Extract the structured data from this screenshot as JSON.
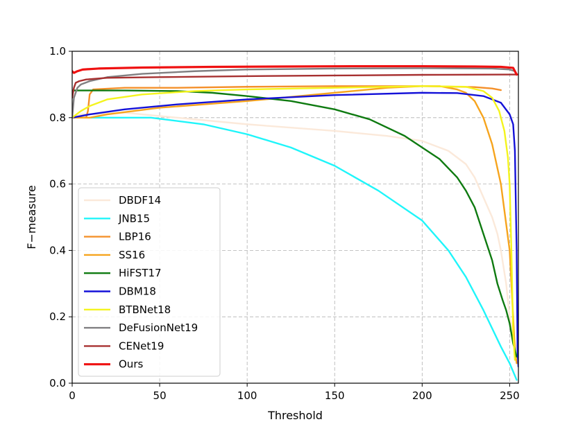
{
  "chart_data": {
    "type": "line",
    "title": "",
    "xlabel": "Threshold",
    "ylabel": "F−measure",
    "xlim": [
      0,
      255
    ],
    "ylim": [
      0.0,
      1.0
    ],
    "xticks": [
      0,
      50,
      100,
      150,
      200,
      250
    ],
    "yticks": [
      0.0,
      0.2,
      0.4,
      0.6,
      0.8,
      1.0
    ],
    "xtick_labels": [
      "0",
      "50",
      "100",
      "150",
      "200",
      "250"
    ],
    "ytick_labels": [
      "0.0",
      "0.2",
      "0.4",
      "0.6",
      "0.8",
      "1.0"
    ],
    "grid": true,
    "legend_position": "lower-left",
    "series": [
      {
        "name": "DBDF14",
        "color": "#fbe9da",
        "points": [
          [
            0,
            0.8
          ],
          [
            5,
            0.81
          ],
          [
            10,
            0.81
          ],
          [
            30,
            0.815
          ],
          [
            60,
            0.8
          ],
          [
            100,
            0.78
          ],
          [
            150,
            0.76
          ],
          [
            180,
            0.745
          ],
          [
            200,
            0.73
          ],
          [
            215,
            0.7
          ],
          [
            225,
            0.66
          ],
          [
            230,
            0.62
          ],
          [
            235,
            0.56
          ],
          [
            240,
            0.5
          ],
          [
            243,
            0.45
          ],
          [
            245,
            0.4
          ],
          [
            248,
            0.3
          ],
          [
            250,
            0.2
          ],
          [
            252,
            0.15
          ],
          [
            254,
            0.1
          ],
          [
            255,
            0.08
          ]
        ]
      },
      {
        "name": "JNB15",
        "color": "#1ff5fa",
        "points": [
          [
            0,
            0.8
          ],
          [
            20,
            0.8
          ],
          [
            45,
            0.8
          ],
          [
            75,
            0.78
          ],
          [
            100,
            0.75
          ],
          [
            125,
            0.71
          ],
          [
            150,
            0.655
          ],
          [
            175,
            0.58
          ],
          [
            200,
            0.49
          ],
          [
            215,
            0.4
          ],
          [
            225,
            0.32
          ],
          [
            235,
            0.22
          ],
          [
            245,
            0.11
          ],
          [
            250,
            0.06
          ],
          [
            254,
            0.01
          ]
        ]
      },
      {
        "name": "LBP16",
        "color": "#f4902a",
        "points": [
          [
            0,
            0.8
          ],
          [
            5,
            0.8
          ],
          [
            8,
            0.8
          ],
          [
            9,
            0.82
          ],
          [
            10,
            0.87
          ],
          [
            12,
            0.885
          ],
          [
            30,
            0.89
          ],
          [
            60,
            0.89
          ],
          [
            100,
            0.893
          ],
          [
            150,
            0.895
          ],
          [
            200,
            0.895
          ],
          [
            230,
            0.892
          ],
          [
            240,
            0.888
          ],
          [
            245,
            0.883
          ]
        ]
      },
      {
        "name": "SS16",
        "color": "#f6a41d",
        "points": [
          [
            0,
            0.8
          ],
          [
            10,
            0.8
          ],
          [
            20,
            0.81
          ],
          [
            50,
            0.83
          ],
          [
            100,
            0.85
          ],
          [
            150,
            0.875
          ],
          [
            180,
            0.89
          ],
          [
            200,
            0.895
          ],
          [
            210,
            0.895
          ],
          [
            220,
            0.885
          ],
          [
            225,
            0.875
          ],
          [
            230,
            0.85
          ],
          [
            235,
            0.8
          ],
          [
            240,
            0.72
          ],
          [
            245,
            0.6
          ],
          [
            248,
            0.48
          ],
          [
            250,
            0.4
          ],
          [
            251,
            0.3
          ],
          [
            252,
            0.2
          ],
          [
            253,
            0.1
          ],
          [
            254,
            0.06
          ]
        ]
      },
      {
        "name": "HiFST17",
        "color": "#0e7a10",
        "points": [
          [
            0,
            0.882
          ],
          [
            30,
            0.882
          ],
          [
            60,
            0.88
          ],
          [
            80,
            0.875
          ],
          [
            100,
            0.865
          ],
          [
            125,
            0.85
          ],
          [
            150,
            0.825
          ],
          [
            170,
            0.795
          ],
          [
            190,
            0.745
          ],
          [
            200,
            0.71
          ],
          [
            210,
            0.675
          ],
          [
            220,
            0.62
          ],
          [
            225,
            0.58
          ],
          [
            230,
            0.53
          ],
          [
            235,
            0.45
          ],
          [
            240,
            0.37
          ],
          [
            243,
            0.3
          ],
          [
            246,
            0.25
          ],
          [
            248,
            0.22
          ],
          [
            250,
            0.18
          ],
          [
            252,
            0.12
          ],
          [
            254,
            0.08
          ]
        ]
      },
      {
        "name": "DBM18",
        "color": "#1411d8",
        "points": [
          [
            0,
            0.8
          ],
          [
            10,
            0.81
          ],
          [
            30,
            0.825
          ],
          [
            60,
            0.84
          ],
          [
            100,
            0.855
          ],
          [
            150,
            0.868
          ],
          [
            200,
            0.875
          ],
          [
            220,
            0.874
          ],
          [
            235,
            0.865
          ],
          [
            245,
            0.845
          ],
          [
            250,
            0.81
          ],
          [
            252,
            0.78
          ],
          [
            253,
            0.7
          ],
          [
            254,
            0.4
          ],
          [
            254.5,
            0.1
          ],
          [
            255,
            0.05
          ]
        ]
      },
      {
        "name": "BTBNet18",
        "color": "#f4f41d",
        "points": [
          [
            0,
            0.8
          ],
          [
            5,
            0.82
          ],
          [
            10,
            0.835
          ],
          [
            20,
            0.855
          ],
          [
            40,
            0.87
          ],
          [
            70,
            0.88
          ],
          [
            100,
            0.885
          ],
          [
            150,
            0.89
          ],
          [
            200,
            0.895
          ],
          [
            225,
            0.893
          ],
          [
            235,
            0.88
          ],
          [
            240,
            0.86
          ],
          [
            244,
            0.82
          ],
          [
            247,
            0.76
          ],
          [
            249,
            0.68
          ],
          [
            250,
            0.6
          ],
          [
            251,
            0.4
          ],
          [
            252,
            0.15
          ],
          [
            253,
            0.07
          ]
        ]
      },
      {
        "name": "DeFusionNet19",
        "color": "#807f81",
        "points": [
          [
            0,
            0.8
          ],
          [
            1,
            0.86
          ],
          [
            3,
            0.89
          ],
          [
            5,
            0.9
          ],
          [
            10,
            0.91
          ],
          [
            20,
            0.922
          ],
          [
            40,
            0.932
          ],
          [
            70,
            0.94
          ],
          [
            100,
            0.945
          ],
          [
            150,
            0.948
          ],
          [
            200,
            0.949
          ],
          [
            240,
            0.948
          ],
          [
            250,
            0.945
          ],
          [
            253,
            0.94
          ]
        ]
      },
      {
        "name": "CENet19",
        "color": "#a73030",
        "points": [
          [
            0,
            0.86
          ],
          [
            1,
            0.89
          ],
          [
            2,
            0.905
          ],
          [
            4,
            0.91
          ],
          [
            8,
            0.915
          ],
          [
            20,
            0.92
          ],
          [
            50,
            0.922
          ],
          [
            100,
            0.925
          ],
          [
            150,
            0.927
          ],
          [
            200,
            0.929
          ],
          [
            250,
            0.93
          ],
          [
            255,
            0.93
          ]
        ]
      },
      {
        "name": "Ours",
        "color": "#ef1111",
        "points": [
          [
            0,
            0.94
          ],
          [
            1,
            0.935
          ],
          [
            3,
            0.94
          ],
          [
            6,
            0.945
          ],
          [
            15,
            0.948
          ],
          [
            40,
            0.951
          ],
          [
            80,
            0.953
          ],
          [
            120,
            0.954
          ],
          [
            160,
            0.955
          ],
          [
            200,
            0.955
          ],
          [
            230,
            0.954
          ],
          [
            245,
            0.953
          ],
          [
            252,
            0.95
          ],
          [
            254,
            0.93
          ]
        ]
      }
    ]
  }
}
